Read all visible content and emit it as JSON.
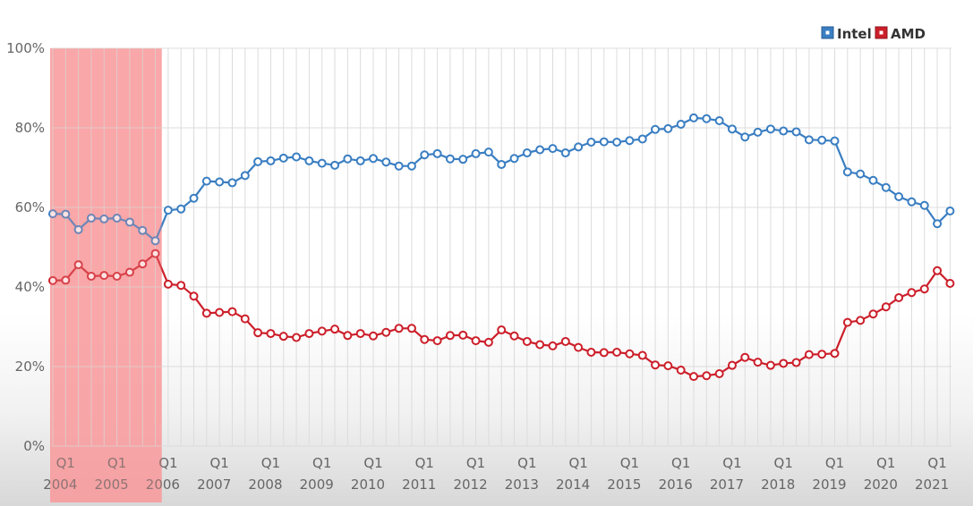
{
  "chart_data": {
    "type": "line",
    "ylim": [
      0,
      100
    ],
    "y_ticks": [
      0,
      20,
      40,
      60,
      80,
      100
    ],
    "y_tick_labels": [
      "0%",
      "20%",
      "40%",
      "60%",
      "80%",
      "100%"
    ],
    "grid": "vertical and horizontal",
    "legend_position": "top-right",
    "x_quarter_label": "Q1",
    "years": [
      "2004",
      "2005",
      "2006",
      "2007",
      "2008",
      "2009",
      "2010",
      "2011",
      "2012",
      "2013",
      "2014",
      "2015",
      "2016",
      "2017",
      "2018",
      "2019",
      "2020",
      "2021"
    ],
    "x_start": "2004 Q1",
    "highlight": {
      "from": "2004 Q1",
      "to": "2006 Q1",
      "color": "#f99a9c"
    },
    "series": [
      {
        "name": "Intel",
        "color": "#3a7ec2",
        "values": [
          58.4,
          58.3,
          54.4,
          57.3,
          57.1,
          57.3,
          56.3,
          54.2,
          51.6,
          59.3,
          59.6,
          62.3,
          66.6,
          66.4,
          66.2,
          68.0,
          71.5,
          71.7,
          72.4,
          72.7,
          71.7,
          71.1,
          70.6,
          72.2,
          71.7,
          72.3,
          71.4,
          70.4,
          70.4,
          73.2,
          73.5,
          72.2,
          72.1,
          73.5,
          73.9,
          70.8,
          72.3,
          73.7,
          74.5,
          74.8,
          73.7,
          75.2,
          76.4,
          76.5,
          76.4,
          76.8,
          77.2,
          79.6,
          79.8,
          80.9,
          82.5,
          82.3,
          81.8,
          79.7,
          77.7,
          78.9,
          79.7,
          79.2,
          79.0,
          77.0,
          76.9,
          76.7,
          68.9,
          68.4,
          66.8,
          65.0,
          62.7,
          61.4,
          60.5,
          55.9,
          59.1
        ]
      },
      {
        "name": "AMD",
        "color": "#cc1f2a",
        "values": [
          41.6,
          41.7,
          45.6,
          42.7,
          42.9,
          42.7,
          43.7,
          45.8,
          48.4,
          40.7,
          40.4,
          37.7,
          33.4,
          33.6,
          33.8,
          32.0,
          28.5,
          28.3,
          27.6,
          27.3,
          28.3,
          28.9,
          29.4,
          27.8,
          28.3,
          27.7,
          28.6,
          29.6,
          29.6,
          26.8,
          26.5,
          27.8,
          27.9,
          26.5,
          26.1,
          29.2,
          27.7,
          26.3,
          25.5,
          25.2,
          26.3,
          24.8,
          23.6,
          23.5,
          23.6,
          23.2,
          22.8,
          20.4,
          20.2,
          19.1,
          17.5,
          17.7,
          18.2,
          20.3,
          22.3,
          21.1,
          20.3,
          20.8,
          21.0,
          23.0,
          23.1,
          23.3,
          31.1,
          31.6,
          33.2,
          35.0,
          37.3,
          38.6,
          39.5,
          44.1,
          40.9
        ]
      }
    ]
  }
}
